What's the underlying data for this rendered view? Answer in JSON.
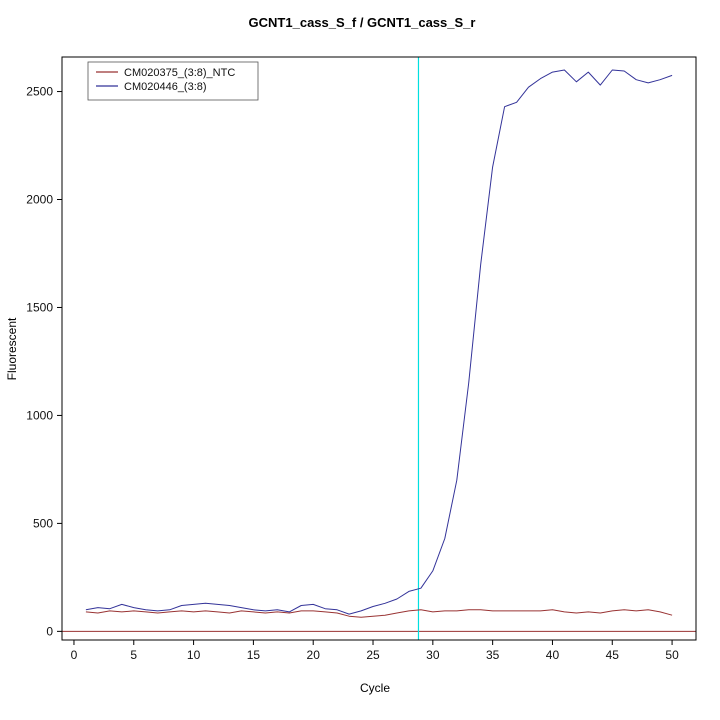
{
  "chart_data": {
    "type": "line",
    "title": "GCNT1_cass_S_f / GCNT1_cass_S_r",
    "xlabel": "Cycle",
    "ylabel": "Fluorescent",
    "x_ticks": [
      0,
      5,
      10,
      15,
      20,
      25,
      30,
      35,
      40,
      45,
      50
    ],
    "y_ticks": [
      0,
      500,
      1000,
      1500,
      2000,
      2500
    ],
    "xlim": [
      -1,
      52
    ],
    "ylim": [
      -40,
      2660
    ],
    "grid": false,
    "legend_position": "top-left",
    "threshold_cycle_line": {
      "x": 28.8,
      "color": "#00e0e0"
    },
    "baseline": {
      "y": 0,
      "color": "#993333"
    },
    "x": [
      1,
      2,
      3,
      4,
      5,
      6,
      7,
      8,
      9,
      10,
      11,
      12,
      13,
      14,
      15,
      16,
      17,
      18,
      19,
      20,
      21,
      22,
      23,
      24,
      25,
      26,
      27,
      28,
      29,
      30,
      31,
      32,
      33,
      34,
      35,
      36,
      37,
      38,
      39,
      40,
      41,
      42,
      43,
      44,
      45,
      46,
      47,
      48,
      49,
      50
    ],
    "series": [
      {
        "name": "CM020375_(3:8)_NTC",
        "color": "#993333",
        "values": [
          90,
          85,
          95,
          90,
          95,
          90,
          85,
          90,
          95,
          90,
          95,
          90,
          85,
          95,
          90,
          85,
          90,
          85,
          95,
          95,
          90,
          85,
          70,
          65,
          70,
          75,
          85,
          95,
          100,
          90,
          95,
          95,
          100,
          100,
          95,
          95,
          95,
          95,
          95,
          100,
          90,
          85,
          90,
          85,
          95,
          100,
          95,
          100,
          90,
          75
        ]
      },
      {
        "name": "CM020446_(3:8)",
        "color": "#333399",
        "values": [
          100,
          110,
          105,
          125,
          110,
          100,
          95,
          100,
          120,
          125,
          130,
          125,
          120,
          110,
          100,
          95,
          100,
          90,
          120,
          125,
          105,
          100,
          80,
          95,
          115,
          130,
          150,
          185,
          200,
          280,
          430,
          700,
          1150,
          1700,
          2150,
          2430,
          2450,
          2520,
          2560,
          2590,
          2600,
          2545,
          2590,
          2530,
          2600,
          2595,
          2555,
          2540,
          2555,
          2575
        ]
      }
    ]
  }
}
